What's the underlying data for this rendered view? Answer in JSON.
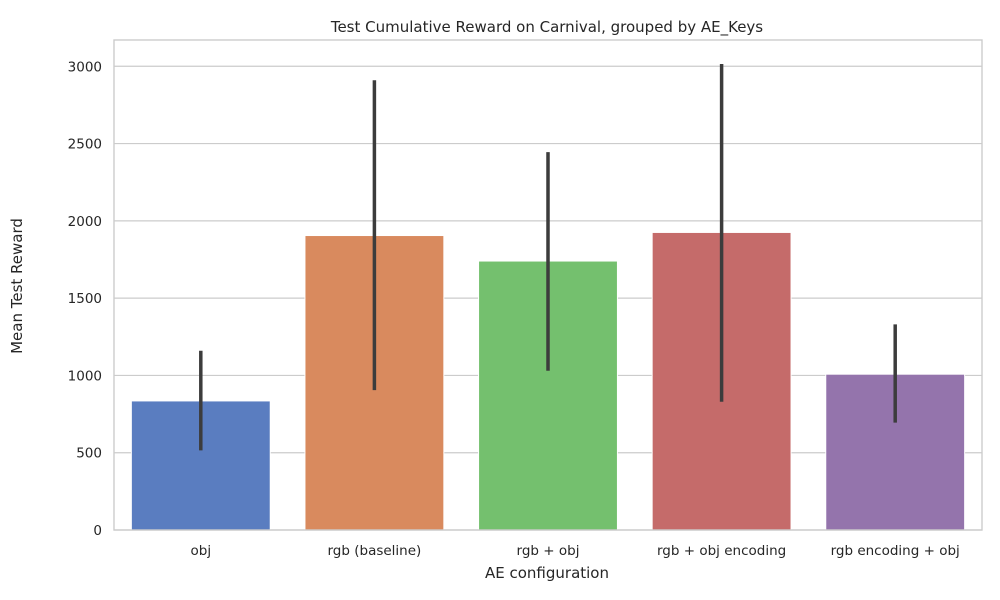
{
  "chart_data": {
    "type": "bar",
    "title": "Test Cumulative Reward on Carnival, grouped by AE_Keys",
    "xlabel": "AE configuration",
    "ylabel": "Mean Test Reward",
    "categories": [
      "obj",
      "rgb (baseline)",
      "rgb + obj",
      "rgb + obj encoding",
      "rgb encoding + obj"
    ],
    "values": [
      835,
      1905,
      1740,
      1925,
      1008
    ],
    "error_low": [
      515,
      905,
      1030,
      830,
      695
    ],
    "error_high": [
      1160,
      2910,
      2445,
      3015,
      1330
    ],
    "colors": [
      "#5a7dc0",
      "#d98a5e",
      "#74c06e",
      "#c56b6a",
      "#9474ac"
    ],
    "ylim": [
      0,
      3170
    ],
    "yticks": [
      0,
      500,
      1000,
      1500,
      2000,
      2500,
      3000
    ],
    "grid": "horizontal",
    "legend": "none"
  }
}
